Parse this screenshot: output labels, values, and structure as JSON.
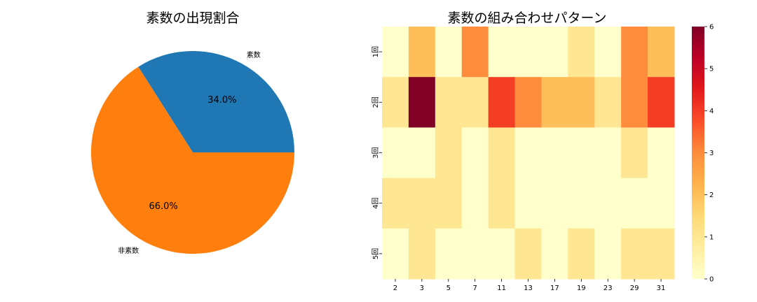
{
  "chart_data": [
    {
      "type": "pie",
      "title": "素数の出現割合",
      "labels": [
        "素数",
        "非素数"
      ],
      "values": [
        34.0,
        66.0
      ],
      "value_labels": [
        "34.0%",
        "66.0%"
      ],
      "colors": [
        "#1f77b4",
        "#ff7f0e"
      ],
      "start_angle_deg": 0,
      "direction": "counterclockwise"
    },
    {
      "type": "heatmap",
      "title": "素数の組み合わせパターン",
      "x_tick_labels": [
        "2",
        "3",
        "5",
        "7",
        "11",
        "13",
        "17",
        "19",
        "23",
        "29",
        "31"
      ],
      "y_tick_labels": [
        "1回",
        "2回",
        "3回",
        "4回",
        "5回"
      ],
      "values": [
        [
          0,
          2,
          0,
          3,
          0,
          0,
          0,
          1,
          0,
          3,
          2
        ],
        [
          1,
          6,
          1,
          1,
          4,
          3,
          2,
          2,
          1,
          3,
          4
        ],
        [
          0,
          0,
          1,
          0,
          1,
          0,
          0,
          0,
          0,
          1,
          0
        ],
        [
          1,
          1,
          1,
          0,
          1,
          0,
          0,
          0,
          0,
          0,
          0
        ],
        [
          0,
          1,
          0,
          0,
          0,
          1,
          0,
          1,
          0,
          1,
          1
        ]
      ],
      "colorbar": {
        "min": 0,
        "max": 6,
        "ticks": [
          "0",
          "1",
          "2",
          "3",
          "4",
          "5",
          "6"
        ],
        "colormap": "YlOrRd"
      }
    }
  ]
}
